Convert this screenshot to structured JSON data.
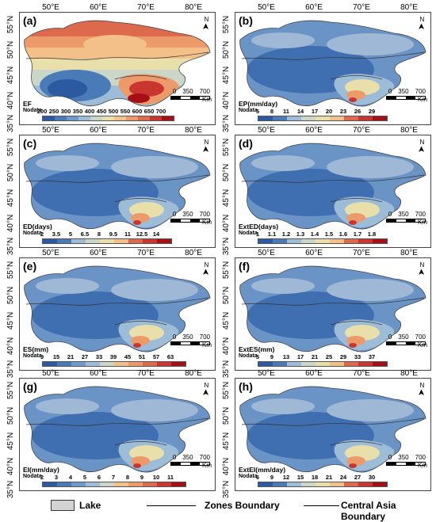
{
  "axes": {
    "x_ticks": [
      "50°E",
      "60°E",
      "70°E",
      "80°E"
    ],
    "y_ticks": [
      "55°N",
      "50°N",
      "45°N",
      "40°N",
      "35°N"
    ]
  },
  "north_label": "N",
  "scale": {
    "ticks": [
      "0",
      "350",
      "700"
    ],
    "unit": "Km"
  },
  "nodata_label": "Nodata",
  "panels": [
    {
      "id": "a",
      "label": "(a)",
      "title": "EF",
      "palette": "warm",
      "values": [
        "200",
        "250",
        "300",
        "350",
        "400",
        "450",
        "500",
        "550",
        "600",
        "650",
        "700"
      ]
    },
    {
      "id": "b",
      "label": "(b)",
      "title": "EP(mm/day)",
      "palette": "cool",
      "values": [
        "5",
        "8",
        "11",
        "14",
        "17",
        "20",
        "23",
        "26",
        "29"
      ]
    },
    {
      "id": "c",
      "label": "(c)",
      "title": "ED(days)",
      "palette": "cool",
      "values": [
        "2",
        "3.5",
        "5",
        "6.5",
        "8",
        "9.5",
        "11",
        "12.5",
        "14"
      ]
    },
    {
      "id": "d",
      "label": "(d)",
      "title": "ExtED(days)",
      "palette": "cool",
      "values": [
        "1",
        "1.1",
        "1.2",
        "1.3",
        "1.4",
        "1.5",
        "1.6",
        "1.7",
        "1.8"
      ]
    },
    {
      "id": "e",
      "label": "(e)",
      "title": "ES(mm)",
      "palette": "cool",
      "values": [
        "9",
        "15",
        "21",
        "27",
        "33",
        "39",
        "45",
        "51",
        "57",
        "63"
      ]
    },
    {
      "id": "f",
      "label": "(f)",
      "title": "ExtES(mm)",
      "palette": "cool",
      "values": [
        "5",
        "9",
        "13",
        "17",
        "21",
        "25",
        "29",
        "33",
        "37"
      ]
    },
    {
      "id": "g",
      "label": "(g)",
      "title": "EI(mm/day)",
      "palette": "cool",
      "values": [
        "2",
        "3",
        "4",
        "5",
        "6",
        "7",
        "8",
        "9",
        "10",
        "11"
      ]
    },
    {
      "id": "h",
      "label": "(h)",
      "title": "ExtEI(mm/day)",
      "palette": "cool",
      "values": [
        "6",
        "9",
        "12",
        "15",
        "18",
        "21",
        "24",
        "27",
        "30"
      ]
    }
  ],
  "colors": {
    "ramp": [
      "#2c5aa0",
      "#4a7bb7",
      "#6e9bc9",
      "#9dbcd8",
      "#c9d6c8",
      "#e9dfaa",
      "#f3c08a",
      "#ec9a6a",
      "#de6a4e",
      "#c9352f",
      "#a50f15"
    ],
    "deep_blue": "#3f6fb0",
    "mid_blue": "#6a93c6",
    "light_blue": "#9fb8d6",
    "nodata": "#d3d3d3"
  },
  "bottom_legend": {
    "lake": "Lake",
    "zones": "Zones Boundary",
    "ca": "Central Asia Boundary"
  }
}
